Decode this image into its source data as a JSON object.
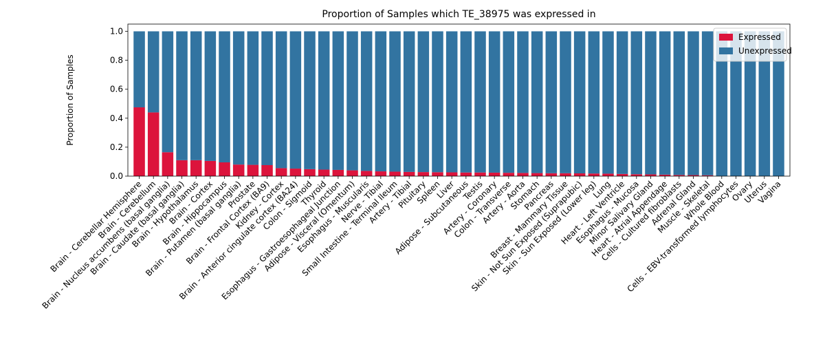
{
  "chart_data": {
    "type": "bar",
    "stacked": true,
    "title": "Proportion of Samples which TE_38975 was expressed in",
    "xlabel": "",
    "ylabel": "Proportion of Samples",
    "ylim": [
      0,
      1.05
    ],
    "yticks": [
      0.0,
      0.2,
      0.4,
      0.6,
      0.8,
      1.0
    ],
    "ytick_labels": [
      "0.0",
      "0.2",
      "0.4",
      "0.6",
      "0.8",
      "1.0"
    ],
    "grid": false,
    "legend_position": "top-right",
    "categories": [
      "Brain - Cerebellar Hemisphere",
      "Brain - Cerebellum",
      "Brain - Nucleus accumbens (basal ganglia)",
      "Brain - Caudate (basal ganglia)",
      "Brain - Hypothalamus",
      "Brain - Cortex",
      "Brain - Hippocampus",
      "Brain - Putamen (basal ganglia)",
      "Prostate",
      "Brain - Frontal Cortex (BA9)",
      "Kidney - Cortex",
      "Brain - Anterior cingulate cortex (BA24)",
      "Colon - Sigmoid",
      "Thyroid",
      "Esophagus - Gastroesophageal Junction",
      "Adipose - Visceral (Omentum)",
      "Esophagus - Muscularis",
      "Nerve - Tibial",
      "Small Intestine - Terminal Ileum",
      "Artery - Tibial",
      "Pituitary",
      "Spleen",
      "Liver",
      "Adipose - Subcutaneous",
      "Testis",
      "Artery - Coronary",
      "Colon - Transverse",
      "Artery - Aorta",
      "Stomach",
      "Pancreas",
      "Breast - Mammary Tissue",
      "Skin - Not Sun Exposed (Suprapubic)",
      "Skin - Sun Exposed (Lower leg)",
      "Lung",
      "Heart - Left Ventricle",
      "Esophagus - Mucosa",
      "Minor Salivary Gland",
      "Heart - Atrial Appendage",
      "Cells - Cultured fibroblasts",
      "Adrenal Gland",
      "Muscle - Skeletal",
      "Whole Blood",
      "Cells - EBV-transformed lymphocytes",
      "Ovary",
      "Uterus",
      "Vagina"
    ],
    "series": [
      {
        "name": "Expressed",
        "color": "#dc143c",
        "values": [
          0.475,
          0.44,
          0.165,
          0.11,
          0.11,
          0.105,
          0.095,
          0.08,
          0.078,
          0.076,
          0.055,
          0.052,
          0.048,
          0.045,
          0.043,
          0.04,
          0.036,
          0.033,
          0.031,
          0.029,
          0.028,
          0.027,
          0.026,
          0.025,
          0.025,
          0.024,
          0.023,
          0.022,
          0.021,
          0.02,
          0.02,
          0.019,
          0.018,
          0.017,
          0.015,
          0.013,
          0.012,
          0.01,
          0.008,
          0.007,
          0.006,
          0.0,
          0.0,
          0.0,
          0.0,
          0.0
        ]
      },
      {
        "name": "Unexpressed",
        "color": "#3274a1",
        "values": [
          0.525,
          0.56,
          0.835,
          0.89,
          0.89,
          0.895,
          0.905,
          0.92,
          0.922,
          0.924,
          0.945,
          0.948,
          0.952,
          0.955,
          0.957,
          0.96,
          0.964,
          0.967,
          0.969,
          0.971,
          0.972,
          0.973,
          0.974,
          0.975,
          0.975,
          0.976,
          0.977,
          0.978,
          0.979,
          0.98,
          0.98,
          0.981,
          0.982,
          0.983,
          0.985,
          0.987,
          0.988,
          0.99,
          0.992,
          0.993,
          0.994,
          1.0,
          1.0,
          1.0,
          1.0,
          1.0
        ]
      }
    ]
  }
}
